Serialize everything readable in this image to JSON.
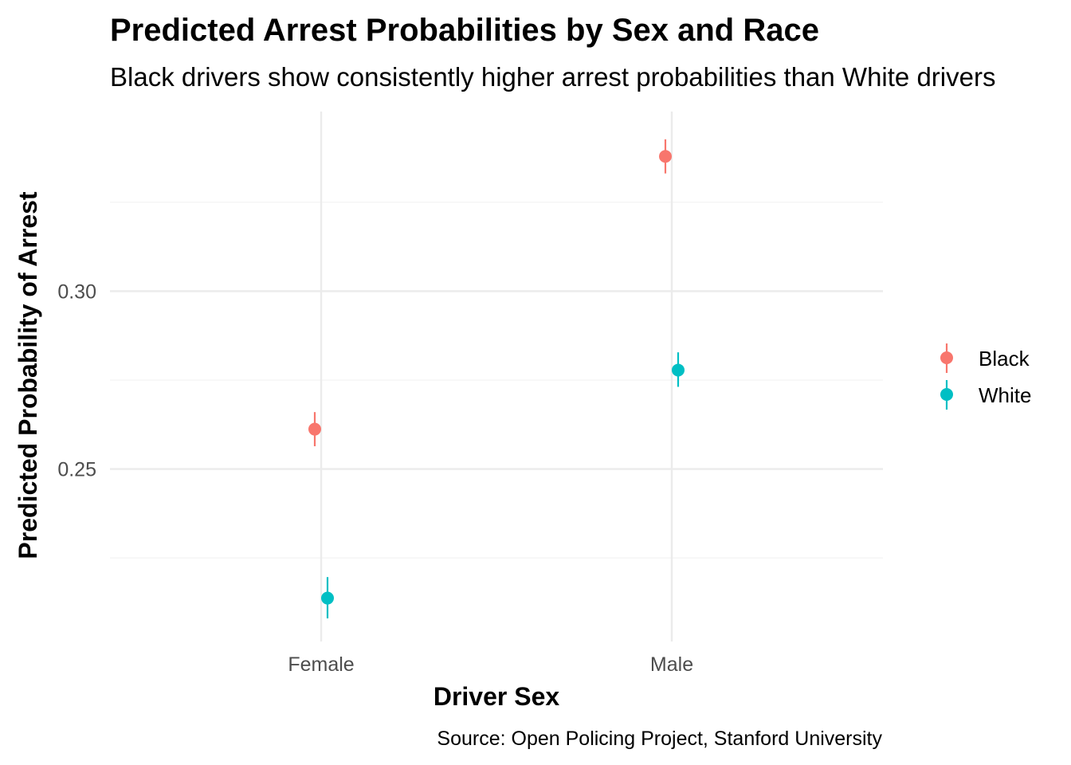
{
  "colors": {
    "Black": "#F8766D",
    "White": "#00BFC4",
    "grid_major": "#EBEBEB",
    "grid_minor": "#F3F3F3"
  },
  "chart_data": {
    "type": "scatter",
    "title": "Predicted Arrest Probabilities by Sex and Race",
    "subtitle": "Black drivers show consistently higher arrest probabilities than White drivers",
    "xlabel": "Driver Sex",
    "ylabel": "Predicted Probability of Arrest",
    "caption": "Source: Open Policing Project, Stanford University",
    "categories": [
      "Female",
      "Male"
    ],
    "y_ticks": [
      "0.25",
      "0.30"
    ],
    "ylim": [
      0.2015,
      0.3505
    ],
    "grid": true,
    "legend_position": "right",
    "series": [
      {
        "name": "Black",
        "values": [
          0.2612,
          0.3379
        ],
        "lower": [
          0.2564,
          0.3331
        ],
        "upper": [
          0.266,
          0.3427
        ]
      },
      {
        "name": "White",
        "values": [
          0.2137,
          0.2778
        ],
        "lower": [
          0.208,
          0.2731
        ],
        "upper": [
          0.2196,
          0.2828
        ]
      }
    ]
  }
}
